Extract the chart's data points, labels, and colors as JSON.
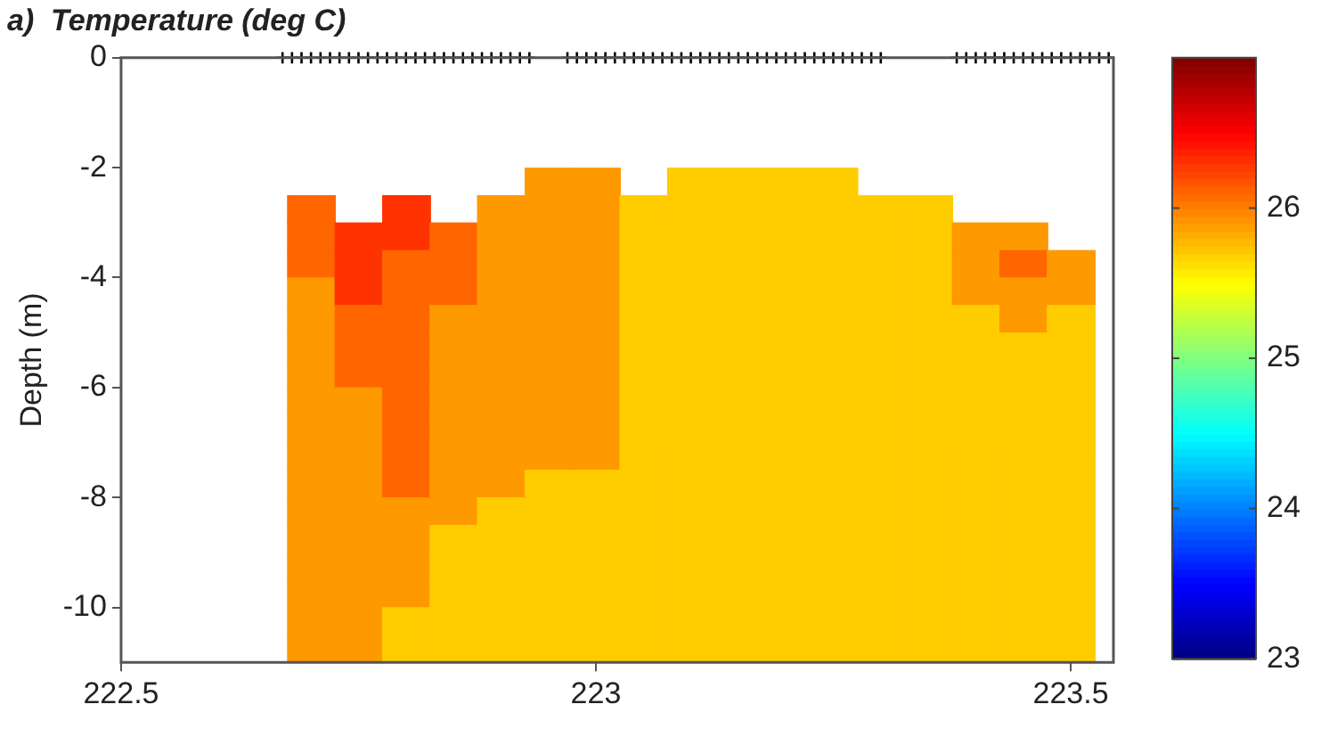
{
  "chart_data": {
    "type": "scatter",
    "title": "a)  Temperature (deg C)",
    "ylabel": "Depth (m)",
    "clim": [
      23,
      27
    ],
    "cticks": [
      23,
      24,
      25,
      26
    ],
    "xlim": [
      222.5,
      223.545
    ],
    "xticks": [
      222.5,
      223,
      223.5
    ],
    "ylim": [
      -11,
      0
    ],
    "yticks": [
      -10,
      -8,
      -6,
      -4,
      -2,
      0
    ],
    "series": [
      {
        "type": "scatter",
        "marker": "square",
        "x": [
          222.7,
          222.7,
          222.7,
          222.7,
          222.7,
          222.7,
          222.7,
          222.7,
          222.7,
          222.7,
          222.7,
          222.7,
          222.7,
          222.7,
          222.7,
          222.7,
          222.7
        ],
        "values": [
          -2.75,
          -3.25,
          -3.75,
          -4.25,
          -4.75,
          -5.25,
          -5.75,
          -6.25,
          -6.75,
          -7.25,
          -7.75,
          -8.25,
          -8.75,
          -9.25,
          -9.75,
          -10.25,
          -10.75
        ],
        "cvalues": [
          26.1,
          26.1,
          26.1,
          25.9,
          25.9,
          25.9,
          25.9,
          25.9,
          25.9,
          25.9,
          25.9,
          25.9,
          25.9,
          25.9,
          25.9,
          25.9,
          25.9
        ],
        "colors": [
          "#ff6600",
          "#ff6600",
          "#ff6600",
          "#ff9900",
          "#ff9900",
          "#ff9900",
          "#ff9900",
          "#ff9900",
          "#ff9900",
          "#ff9900",
          "#ff9900",
          "#ff9900",
          "#ff9900",
          "#ff9900",
          "#ff9900",
          "#ff9900",
          "#ff9900"
        ]
      },
      {
        "type": "scatter",
        "marker": "square",
        "x": [
          222.75,
          222.75,
          222.75,
          222.75,
          222.75,
          222.75,
          222.75,
          222.75,
          222.75,
          222.75,
          222.75,
          222.75,
          222.75,
          222.75,
          222.75,
          222.75
        ],
        "values": [
          -3.25,
          -3.75,
          -4.25,
          -4.75,
          -5.25,
          -5.75,
          -6.25,
          -6.75,
          -7.25,
          -7.75,
          -8.25,
          -8.75,
          -9.25,
          -9.75,
          -10.25,
          -10.75
        ],
        "cvalues": [
          26.3,
          26.3,
          26.3,
          26.1,
          26.1,
          26.1,
          25.9,
          25.9,
          25.9,
          25.9,
          25.9,
          25.9,
          25.9,
          25.9,
          25.9,
          25.9
        ],
        "colors": [
          "#ff3300",
          "#ff3300",
          "#ff3300",
          "#ff6600",
          "#ff6600",
          "#ff6600",
          "#ff9900",
          "#ff9900",
          "#ff9900",
          "#ff9900",
          "#ff9900",
          "#ff9900",
          "#ff9900",
          "#ff9900",
          "#ff9900",
          "#ff9900"
        ]
      },
      {
        "type": "scatter",
        "marker": "square",
        "x": [
          222.8,
          222.8,
          222.8,
          222.8,
          222.8,
          222.8,
          222.8,
          222.8,
          222.8,
          222.8,
          222.8,
          222.8,
          222.8,
          222.8,
          222.8,
          222.8,
          222.8
        ],
        "values": [
          -2.75,
          -3.25,
          -3.75,
          -4.25,
          -4.75,
          -5.25,
          -5.75,
          -6.25,
          -6.75,
          -7.25,
          -7.75,
          -8.25,
          -8.75,
          -9.25,
          -9.75,
          -10.25,
          -10.75
        ],
        "cvalues": [
          26.3,
          26.3,
          26.1,
          26.1,
          26.1,
          26.1,
          26.1,
          26.1,
          26.1,
          26.1,
          26.1,
          25.9,
          25.9,
          25.9,
          25.9,
          25.7,
          25.7
        ],
        "colors": [
          "#ff3300",
          "#ff3300",
          "#ff6600",
          "#ff6600",
          "#ff6600",
          "#ff6600",
          "#ff6600",
          "#ff6600",
          "#ff6600",
          "#ff6600",
          "#ff6600",
          "#ff9900",
          "#ff9900",
          "#ff9900",
          "#ff9900",
          "#ffcc00",
          "#ffcc00"
        ]
      },
      {
        "type": "scatter",
        "marker": "square",
        "x": [
          222.85,
          222.85,
          222.85,
          222.85,
          222.85,
          222.85,
          222.85,
          222.85,
          222.85,
          222.85,
          222.85,
          222.85,
          222.85,
          222.85,
          222.85,
          222.85
        ],
        "values": [
          -3.25,
          -3.75,
          -4.25,
          -4.75,
          -5.25,
          -5.75,
          -6.25,
          -6.75,
          -7.25,
          -7.75,
          -8.25,
          -8.75,
          -9.25,
          -9.75,
          -10.25,
          -10.75
        ],
        "cvalues": [
          26.1,
          26.1,
          26.1,
          25.9,
          25.9,
          25.9,
          25.9,
          25.9,
          25.9,
          25.9,
          25.9,
          25.7,
          25.7,
          25.7,
          25.7,
          25.7
        ],
        "colors": [
          "#ff6600",
          "#ff6600",
          "#ff6600",
          "#ff9900",
          "#ff9900",
          "#ff9900",
          "#ff9900",
          "#ff9900",
          "#ff9900",
          "#ff9900",
          "#ff9900",
          "#ffcc00",
          "#ffcc00",
          "#ffcc00",
          "#ffcc00",
          "#ffcc00"
        ]
      },
      {
        "type": "scatter",
        "marker": "square",
        "x": [
          222.9,
          222.9,
          222.9,
          222.9,
          222.9,
          222.9,
          222.9,
          222.9,
          222.9,
          222.9,
          222.9,
          222.9,
          222.9,
          222.9,
          222.9,
          222.9,
          222.9
        ],
        "values": [
          -2.75,
          -3.25,
          -3.75,
          -4.25,
          -4.75,
          -5.25,
          -5.75,
          -6.25,
          -6.75,
          -7.25,
          -7.75,
          -8.25,
          -8.75,
          -9.25,
          -9.75,
          -10.25,
          -10.75
        ],
        "cvalues": [
          25.9,
          25.9,
          25.9,
          25.9,
          25.9,
          25.9,
          25.9,
          25.9,
          25.9,
          25.9,
          25.9,
          25.7,
          25.7,
          25.7,
          25.7,
          25.7,
          25.7
        ],
        "colors": [
          "#ff9900",
          "#ff9900",
          "#ff9900",
          "#ff9900",
          "#ff9900",
          "#ff9900",
          "#ff9900",
          "#ff9900",
          "#ff9900",
          "#ff9900",
          "#ff9900",
          "#ffcc00",
          "#ffcc00",
          "#ffcc00",
          "#ffcc00",
          "#ffcc00",
          "#ffcc00"
        ]
      },
      {
        "type": "scatter",
        "marker": "square",
        "x": [
          222.95,
          222.95,
          222.95,
          222.95,
          222.95,
          222.95,
          222.95,
          222.95,
          222.95,
          222.95,
          222.95,
          222.95,
          222.95,
          222.95,
          222.95,
          222.95,
          222.95,
          222.95
        ],
        "values": [
          -2.25,
          -2.75,
          -3.25,
          -3.75,
          -4.25,
          -4.75,
          -5.25,
          -5.75,
          -6.25,
          -6.75,
          -7.25,
          -7.75,
          -8.25,
          -8.75,
          -9.25,
          -9.75,
          -10.25,
          -10.75
        ],
        "cvalues": [
          25.9,
          25.9,
          25.9,
          25.9,
          25.9,
          25.9,
          25.9,
          25.9,
          25.9,
          25.9,
          25.9,
          25.7,
          25.7,
          25.7,
          25.7,
          25.7,
          25.7,
          25.7
        ],
        "colors": [
          "#ff9900",
          "#ff9900",
          "#ff9900",
          "#ff9900",
          "#ff9900",
          "#ff9900",
          "#ff9900",
          "#ff9900",
          "#ff9900",
          "#ff9900",
          "#ff9900",
          "#ffcc00",
          "#ffcc00",
          "#ffcc00",
          "#ffcc00",
          "#ffcc00",
          "#ffcc00",
          "#ffcc00"
        ]
      },
      {
        "type": "scatter",
        "marker": "square",
        "x": [
          223,
          223,
          223,
          223,
          223,
          223,
          223,
          223,
          223,
          223,
          223,
          223,
          223,
          223,
          223,
          223,
          223,
          223
        ],
        "values": [
          -2.25,
          -2.75,
          -3.25,
          -3.75,
          -4.25,
          -4.75,
          -5.25,
          -5.75,
          -6.25,
          -6.75,
          -7.25,
          -7.75,
          -8.25,
          -8.75,
          -9.25,
          -9.75,
          -10.25,
          -10.75
        ],
        "cvalues": [
          25.9,
          25.9,
          25.9,
          25.9,
          25.9,
          25.9,
          25.9,
          25.9,
          25.9,
          25.9,
          25.9,
          25.7,
          25.7,
          25.7,
          25.7,
          25.7,
          25.7,
          25.7
        ],
        "colors": [
          "#ff9900",
          "#ff9900",
          "#ff9900",
          "#ff9900",
          "#ff9900",
          "#ff9900",
          "#ff9900",
          "#ff9900",
          "#ff9900",
          "#ff9900",
          "#ff9900",
          "#ffcc00",
          "#ffcc00",
          "#ffcc00",
          "#ffcc00",
          "#ffcc00",
          "#ffcc00",
          "#ffcc00"
        ]
      },
      {
        "type": "scatter",
        "marker": "square",
        "color": "#ffcc00",
        "x": [
          223.05,
          223.05,
          223.05,
          223.05,
          223.05,
          223.05,
          223.05,
          223.05,
          223.05,
          223.05,
          223.05,
          223.05,
          223.05,
          223.05,
          223.05,
          223.05,
          223.05
        ],
        "values": [
          -2.75,
          -3.25,
          -3.75,
          -4.25,
          -4.75,
          -5.25,
          -5.75,
          -6.25,
          -6.75,
          -7.25,
          -7.75,
          -8.25,
          -8.75,
          -9.25,
          -9.75,
          -10.25,
          -10.75
        ],
        "cvalues": [
          25.7,
          25.7,
          25.7,
          25.7,
          25.7,
          25.7,
          25.7,
          25.7,
          25.7,
          25.7,
          25.7,
          25.7,
          25.7,
          25.7,
          25.7,
          25.7,
          25.7
        ]
      },
      {
        "type": "scatter",
        "marker": "square",
        "color": "#ffcc00",
        "x": [
          223.1,
          223.1,
          223.1,
          223.1,
          223.1,
          223.1,
          223.1,
          223.1,
          223.1,
          223.1,
          223.1,
          223.1,
          223.1,
          223.1,
          223.1,
          223.1,
          223.1,
          223.1
        ],
        "values": [
          -2.25,
          -2.75,
          -3.25,
          -3.75,
          -4.25,
          -4.75,
          -5.25,
          -5.75,
          -6.25,
          -6.75,
          -7.25,
          -7.75,
          -8.25,
          -8.75,
          -9.25,
          -9.75,
          -10.25,
          -10.75
        ],
        "cvalues": [
          25.7,
          25.7,
          25.7,
          25.7,
          25.7,
          25.7,
          25.7,
          25.7,
          25.7,
          25.7,
          25.7,
          25.7,
          25.7,
          25.7,
          25.7,
          25.7,
          25.7,
          25.7
        ]
      },
      {
        "type": "scatter",
        "marker": "square",
        "color": "#ffcc00",
        "x": [
          223.15,
          223.15,
          223.15,
          223.15,
          223.15,
          223.15,
          223.15,
          223.15,
          223.15,
          223.15,
          223.15,
          223.15,
          223.15,
          223.15,
          223.15,
          223.15,
          223.15,
          223.15
        ],
        "values": [
          -2.25,
          -2.75,
          -3.25,
          -3.75,
          -4.25,
          -4.75,
          -5.25,
          -5.75,
          -6.25,
          -6.75,
          -7.25,
          -7.75,
          -8.25,
          -8.75,
          -9.25,
          -9.75,
          -10.25,
          -10.75
        ],
        "cvalues": [
          25.7,
          25.7,
          25.7,
          25.7,
          25.7,
          25.7,
          25.7,
          25.7,
          25.7,
          25.7,
          25.7,
          25.7,
          25.7,
          25.7,
          25.7,
          25.7,
          25.7,
          25.7
        ]
      },
      {
        "type": "scatter",
        "marker": "square",
        "color": "#ffcc00",
        "x": [
          223.2,
          223.2,
          223.2,
          223.2,
          223.2,
          223.2,
          223.2,
          223.2,
          223.2,
          223.2,
          223.2,
          223.2,
          223.2,
          223.2,
          223.2,
          223.2,
          223.2,
          223.2
        ],
        "values": [
          -2.25,
          -2.75,
          -3.25,
          -3.75,
          -4.25,
          -4.75,
          -5.25,
          -5.75,
          -6.25,
          -6.75,
          -7.25,
          -7.75,
          -8.25,
          -8.75,
          -9.25,
          -9.75,
          -10.25,
          -10.75
        ],
        "cvalues": [
          25.7,
          25.7,
          25.7,
          25.7,
          25.7,
          25.7,
          25.7,
          25.7,
          25.7,
          25.7,
          25.7,
          25.7,
          25.7,
          25.7,
          25.7,
          25.7,
          25.7,
          25.7
        ]
      },
      {
        "type": "scatter",
        "marker": "square",
        "color": "#ffcc00",
        "x": [
          223.25,
          223.25,
          223.25,
          223.25,
          223.25,
          223.25,
          223.25,
          223.25,
          223.25,
          223.25,
          223.25,
          223.25,
          223.25,
          223.25,
          223.25,
          223.25,
          223.25,
          223.25
        ],
        "values": [
          -2.25,
          -2.75,
          -3.25,
          -3.75,
          -4.25,
          -4.75,
          -5.25,
          -5.75,
          -6.25,
          -6.75,
          -7.25,
          -7.75,
          -8.25,
          -8.75,
          -9.25,
          -9.75,
          -10.25,
          -10.75
        ],
        "cvalues": [
          25.7,
          25.7,
          25.7,
          25.7,
          25.7,
          25.7,
          25.7,
          25.7,
          25.7,
          25.7,
          25.7,
          25.7,
          25.7,
          25.7,
          25.7,
          25.7,
          25.7,
          25.7
        ]
      },
      {
        "type": "scatter",
        "marker": "square",
        "color": "#ffcc00",
        "x": [
          223.3,
          223.3,
          223.3,
          223.3,
          223.3,
          223.3,
          223.3,
          223.3,
          223.3,
          223.3,
          223.3,
          223.3,
          223.3,
          223.3,
          223.3,
          223.3,
          223.3
        ],
        "values": [
          -2.75,
          -3.25,
          -3.75,
          -4.25,
          -4.75,
          -5.25,
          -5.75,
          -6.25,
          -6.75,
          -7.25,
          -7.75,
          -8.25,
          -8.75,
          -9.25,
          -9.75,
          -10.25,
          -10.75
        ],
        "cvalues": [
          25.7,
          25.7,
          25.7,
          25.7,
          25.7,
          25.7,
          25.7,
          25.7,
          25.7,
          25.7,
          25.7,
          25.7,
          25.7,
          25.7,
          25.7,
          25.7,
          25.7
        ]
      },
      {
        "type": "scatter",
        "marker": "square",
        "color": "#ffcc00",
        "x": [
          223.35,
          223.35,
          223.35,
          223.35,
          223.35,
          223.35,
          223.35,
          223.35,
          223.35,
          223.35,
          223.35,
          223.35,
          223.35,
          223.35,
          223.35,
          223.35,
          223.35
        ],
        "values": [
          -2.75,
          -3.25,
          -3.75,
          -4.25,
          -4.75,
          -5.25,
          -5.75,
          -6.25,
          -6.75,
          -7.25,
          -7.75,
          -8.25,
          -8.75,
          -9.25,
          -9.75,
          -10.25,
          -10.75
        ],
        "cvalues": [
          25.7,
          25.7,
          25.7,
          25.7,
          25.7,
          25.7,
          25.7,
          25.7,
          25.7,
          25.7,
          25.7,
          25.7,
          25.7,
          25.7,
          25.7,
          25.7,
          25.7
        ]
      },
      {
        "type": "scatter",
        "marker": "square",
        "x": [
          223.4,
          223.4,
          223.4,
          223.4,
          223.4,
          223.4,
          223.4,
          223.4,
          223.4,
          223.4,
          223.4,
          223.4,
          223.4,
          223.4,
          223.4,
          223.4
        ],
        "values": [
          -3.25,
          -3.75,
          -4.25,
          -4.75,
          -5.25,
          -5.75,
          -6.25,
          -6.75,
          -7.25,
          -7.75,
          -8.25,
          -8.75,
          -9.25,
          -9.75,
          -10.25,
          -10.75
        ],
        "cvalues": [
          25.9,
          25.9,
          25.9,
          25.7,
          25.7,
          25.7,
          25.7,
          25.7,
          25.7,
          25.7,
          25.7,
          25.7,
          25.7,
          25.7,
          25.7,
          25.7
        ],
        "colors": [
          "#ff9900",
          "#ff9900",
          "#ff9900",
          "#ffcc00",
          "#ffcc00",
          "#ffcc00",
          "#ffcc00",
          "#ffcc00",
          "#ffcc00",
          "#ffcc00",
          "#ffcc00",
          "#ffcc00",
          "#ffcc00",
          "#ffcc00",
          "#ffcc00",
          "#ffcc00"
        ]
      },
      {
        "type": "scatter",
        "marker": "square",
        "x": [
          223.45,
          223.45,
          223.45,
          223.45,
          223.45,
          223.45,
          223.45,
          223.45,
          223.45,
          223.45,
          223.45,
          223.45,
          223.45,
          223.45,
          223.45,
          223.45
        ],
        "values": [
          -3.25,
          -3.75,
          -4.25,
          -4.75,
          -5.25,
          -5.75,
          -6.25,
          -6.75,
          -7.25,
          -7.75,
          -8.25,
          -8.75,
          -9.25,
          -9.75,
          -10.25,
          -10.75
        ],
        "cvalues": [
          25.9,
          26.1,
          25.9,
          25.9,
          25.7,
          25.7,
          25.7,
          25.7,
          25.7,
          25.7,
          25.7,
          25.7,
          25.7,
          25.7,
          25.7,
          25.7
        ],
        "colors": [
          "#ff9900",
          "#ff6600",
          "#ff9900",
          "#ff9900",
          "#ffcc00",
          "#ffcc00",
          "#ffcc00",
          "#ffcc00",
          "#ffcc00",
          "#ffcc00",
          "#ffcc00",
          "#ffcc00",
          "#ffcc00",
          "#ffcc00",
          "#ffcc00",
          "#ffcc00"
        ]
      },
      {
        "type": "scatter",
        "marker": "square",
        "x": [
          223.5,
          223.5,
          223.5,
          223.5,
          223.5,
          223.5,
          223.5,
          223.5,
          223.5,
          223.5,
          223.5,
          223.5,
          223.5,
          223.5,
          223.5
        ],
        "values": [
          -3.75,
          -4.25,
          -4.75,
          -5.25,
          -5.75,
          -6.25,
          -6.75,
          -7.25,
          -7.75,
          -8.25,
          -8.75,
          -9.25,
          -9.75,
          -10.25,
          -10.75
        ],
        "cvalues": [
          25.9,
          25.9,
          25.7,
          25.7,
          25.7,
          25.7,
          25.7,
          25.7,
          25.7,
          25.7,
          25.7,
          25.7,
          25.7,
          25.7,
          25.7
        ],
        "colors": [
          "#ff9900",
          "#ff9900",
          "#ffcc00",
          "#ffcc00",
          "#ffcc00",
          "#ffcc00",
          "#ffcc00",
          "#ffcc00",
          "#ffcc00",
          "#ffcc00",
          "#ffcc00",
          "#ffcc00",
          "#ffcc00",
          "#ffcc00",
          "#ffcc00"
        ]
      },
      {
        "type": "scatter",
        "marker": "cross",
        "color": "#000000",
        "x": [
          222.67,
          222.68,
          222.69,
          222.7,
          222.71,
          222.72,
          222.73,
          222.74,
          222.75,
          222.76,
          222.77,
          222.78,
          222.79,
          222.8,
          222.81,
          222.82,
          222.83,
          222.84,
          222.85,
          222.86,
          222.87,
          222.88,
          222.89,
          222.9,
          222.91,
          222.92,
          222.93,
          222.97,
          222.98,
          222.99,
          223,
          223.01,
          223.02,
          223.03,
          223.04,
          223.05,
          223.06,
          223.07,
          223.08,
          223.09,
          223.1,
          223.11,
          223.12,
          223.13,
          223.14,
          223.15,
          223.16,
          223.17,
          223.18,
          223.19,
          223.2,
          223.21,
          223.22,
          223.23,
          223.24,
          223.25,
          223.26,
          223.27,
          223.28,
          223.29,
          223.3,
          223.38,
          223.39,
          223.4,
          223.41,
          223.42,
          223.43,
          223.44,
          223.45,
          223.46,
          223.47,
          223.48,
          223.49,
          223.5,
          223.51,
          223.52,
          223.53,
          223.54
        ],
        "values": [
          0,
          0,
          0,
          0,
          0,
          0,
          0,
          0,
          0,
          0,
          0,
          0,
          0,
          0,
          0,
          0,
          0,
          0,
          0,
          0,
          0,
          0,
          0,
          0,
          0,
          0,
          0,
          0,
          0,
          0,
          0,
          0,
          0,
          0,
          0,
          0,
          0,
          0,
          0,
          0,
          0,
          0,
          0,
          0,
          0,
          0,
          0,
          0,
          0,
          0,
          0,
          0,
          0,
          0,
          0,
          0,
          0,
          0,
          0,
          0,
          0,
          0,
          0,
          0,
          0,
          0,
          0,
          0,
          0,
          0,
          0,
          0,
          0,
          0,
          0,
          0,
          0,
          0
        ]
      }
    ]
  }
}
